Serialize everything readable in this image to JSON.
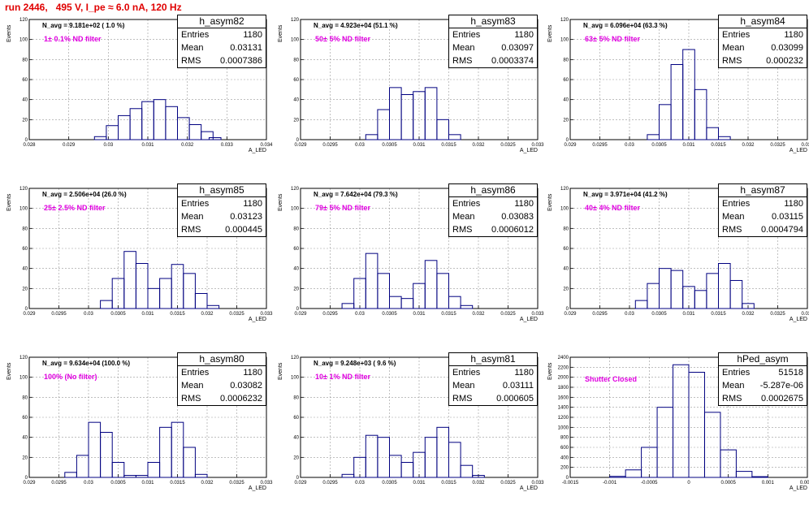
{
  "title": "run 2446,   495 V, I_pe ≈ 6.0 nA, 120 Hz",
  "colors": {
    "title": "#e00000",
    "filter_label": "#e000e0",
    "histogram": "#000080",
    "grid": "#999999"
  },
  "stat_labels": {
    "entries": "Entries",
    "mean": "Mean",
    "rms": "RMS"
  },
  "chart_data": [
    {
      "type": "histogram",
      "name": "h_asym82",
      "navg": "N_avg = 9.181e+02 ( 1.0 %)",
      "filter": "1± 0.1% ND filter",
      "entries": "1180",
      "mean": "0.03131",
      "rms": "0.0007386",
      "xlim": [
        0.028,
        0.034
      ],
      "ylim": [
        0,
        120
      ],
      "xticks": [
        "0.028",
        "0.029",
        "0.03",
        "0.031",
        "0.032",
        "0.033",
        "0.034"
      ],
      "yticks": [
        "0",
        "20",
        "40",
        "60",
        "80",
        "100",
        "120"
      ],
      "xlabel": "A_LED",
      "ylabel": "Events",
      "grid": true,
      "bins": [
        0.0298,
        0.0301,
        0.0304,
        0.0307,
        0.031,
        0.0313,
        0.0316,
        0.0319,
        0.0322,
        0.0325,
        0.0327
      ],
      "counts": [
        3,
        14,
        24,
        31,
        38,
        40,
        33,
        22,
        15,
        8,
        2
      ]
    },
    {
      "type": "histogram",
      "name": "h_asym83",
      "navg": "N_avg = 4.923e+04 (51.1 %)",
      "filter": "50± 5% ND filter",
      "entries": "1180",
      "mean": "0.03097",
      "rms": "0.0003374",
      "xlim": [
        0.029,
        0.033
      ],
      "ylim": [
        0,
        120
      ],
      "xticks": [
        "0.029",
        "0.0295",
        "0.03",
        "0.0305",
        "0.031",
        "0.0315",
        "0.032",
        "0.0325",
        "0.033"
      ],
      "yticks": [
        "0",
        "20",
        "40",
        "60",
        "80",
        "100",
        "120"
      ],
      "xlabel": "A_LED",
      "ylabel": "Events",
      "grid": true,
      "bins": [
        0.0302,
        0.0304,
        0.0306,
        0.0308,
        0.031,
        0.0312,
        0.0314,
        0.0316
      ],
      "counts": [
        5,
        30,
        52,
        45,
        48,
        52,
        20,
        5
      ]
    },
    {
      "type": "histogram",
      "name": "h_asym84",
      "navg": "N_avg = 6.096e+04 (63.3 %)",
      "filter": "63± 5% ND filter",
      "entries": "1180",
      "mean": "0.03099",
      "rms": "0.000232",
      "xlim": [
        0.029,
        0.033
      ],
      "ylim": [
        0,
        120
      ],
      "xticks": [
        "0.029",
        "0.0295",
        "0.03",
        "0.0305",
        "0.031",
        "0.0315",
        "0.032",
        "0.0325",
        "0.033"
      ],
      "yticks": [
        "0",
        "20",
        "40",
        "60",
        "80",
        "100",
        "120"
      ],
      "xlabel": "A_LED",
      "ylabel": "Events",
      "grid": true,
      "bins": [
        0.0304,
        0.0306,
        0.0308,
        0.031,
        0.0312,
        0.0314,
        0.0316
      ],
      "counts": [
        5,
        35,
        75,
        90,
        50,
        12,
        3
      ]
    },
    {
      "type": "histogram",
      "name": "h_asym85",
      "navg": "N_avg = 2.506e+04 (26.0 %)",
      "filter": "25± 2.5% ND filter",
      "entries": "1180",
      "mean": "0.03123",
      "rms": "0.000445",
      "xlim": [
        0.029,
        0.033
      ],
      "ylim": [
        0,
        120
      ],
      "xticks": [
        "0.029",
        "0.0295",
        "0.03",
        "0.0305",
        "0.031",
        "0.0315",
        "0.032",
        "0.0325",
        "0.033"
      ],
      "yticks": [
        "0",
        "20",
        "40",
        "60",
        "80",
        "100",
        "120"
      ],
      "xlabel": "A_LED",
      "ylabel": "Events",
      "grid": true,
      "bins": [
        0.0303,
        0.0305,
        0.0307,
        0.0309,
        0.0311,
        0.0313,
        0.0315,
        0.0317,
        0.0319,
        0.0321
      ],
      "counts": [
        8,
        30,
        57,
        45,
        20,
        30,
        44,
        35,
        15,
        3
      ]
    },
    {
      "type": "histogram",
      "name": "h_asym86",
      "navg": "N_avg = 7.642e+04 (79.3 %)",
      "filter": "79± 5% ND filter",
      "entries": "1180",
      "mean": "0.03083",
      "rms": "0.0006012",
      "xlim": [
        0.029,
        0.033
      ],
      "ylim": [
        0,
        120
      ],
      "xticks": [
        "0.029",
        "0.0295",
        "0.03",
        "0.0305",
        "0.031",
        "0.0315",
        "0.032",
        "0.0325",
        "0.033"
      ],
      "yticks": [
        "0",
        "20",
        "40",
        "60",
        "80",
        "100",
        "120"
      ],
      "xlabel": "A_LED",
      "ylabel": "Events",
      "grid": true,
      "bins": [
        0.0298,
        0.03,
        0.0302,
        0.0304,
        0.0306,
        0.0308,
        0.031,
        0.0312,
        0.0314,
        0.0316,
        0.0318
      ],
      "counts": [
        5,
        30,
        55,
        35,
        12,
        10,
        25,
        48,
        35,
        12,
        3
      ]
    },
    {
      "type": "histogram",
      "name": "h_asym87",
      "navg": "N_avg = 3.971e+04 (41.2 %)",
      "filter": "40± 4% ND filter",
      "entries": "1180",
      "mean": "0.03115",
      "rms": "0.0004794",
      "xlim": [
        0.029,
        0.033
      ],
      "ylim": [
        0,
        120
      ],
      "xticks": [
        "0.029",
        "0.0295",
        "0.03",
        "0.0305",
        "0.031",
        "0.0315",
        "0.032",
        "0.0325",
        "0.033"
      ],
      "yticks": [
        "0",
        "20",
        "40",
        "60",
        "80",
        "100",
        "120"
      ],
      "xlabel": "A_LED",
      "ylabel": "Events",
      "grid": true,
      "bins": [
        0.0302,
        0.0304,
        0.0306,
        0.0308,
        0.031,
        0.0312,
        0.0314,
        0.0316,
        0.0318,
        0.032
      ],
      "counts": [
        8,
        25,
        40,
        38,
        22,
        18,
        35,
        45,
        28,
        5
      ]
    },
    {
      "type": "histogram",
      "name": "h_asym80",
      "navg": "N_avg = 9.634e+04 (100.0 %)",
      "filter": "100% (No filter)",
      "entries": "1180",
      "mean": "0.03082",
      "rms": "0.0006232",
      "xlim": [
        0.029,
        0.033
      ],
      "ylim": [
        0,
        120
      ],
      "xticks": [
        "0.029",
        "0.0295",
        "0.03",
        "0.0305",
        "0.031",
        "0.0315",
        "0.032",
        "0.0325",
        "0.033"
      ],
      "yticks": [
        "0",
        "20",
        "40",
        "60",
        "80",
        "100",
        "120"
      ],
      "xlabel": "A_LED",
      "ylabel": "Events",
      "grid": true,
      "bins": [
        0.0297,
        0.0299,
        0.0301,
        0.0303,
        0.0305,
        0.0307,
        0.0309,
        0.0311,
        0.0313,
        0.0315,
        0.0317,
        0.0319
      ],
      "counts": [
        5,
        22,
        55,
        45,
        15,
        2,
        2,
        15,
        50,
        55,
        30,
        3
      ]
    },
    {
      "type": "histogram",
      "name": "h_asym81",
      "navg": "N_avg = 9.248e+03 ( 9.6 %)",
      "filter": "10± 1% ND filter",
      "entries": "1180",
      "mean": "0.03111",
      "rms": "0.000605",
      "xlim": [
        0.029,
        0.033
      ],
      "ylim": [
        0,
        120
      ],
      "xticks": [
        "0.029",
        "0.0295",
        "0.03",
        "0.0305",
        "0.031",
        "0.0315",
        "0.032",
        "0.0325",
        "0.033"
      ],
      "yticks": [
        "0",
        "20",
        "40",
        "60",
        "80",
        "100",
        "120"
      ],
      "xlabel": "A_LED",
      "ylabel": "Events",
      "grid": true,
      "bins": [
        0.0298,
        0.03,
        0.0302,
        0.0304,
        0.0306,
        0.0308,
        0.031,
        0.0312,
        0.0314,
        0.0316,
        0.0318,
        0.032
      ],
      "counts": [
        3,
        20,
        42,
        40,
        22,
        15,
        25,
        40,
        50,
        35,
        12,
        2
      ]
    },
    {
      "type": "histogram",
      "name": "hPed_asym",
      "navg": "",
      "filter": "Shutter Closed",
      "entries": "51518",
      "mean": "-5.287e-06",
      "rms": "0.0002675",
      "xlim": [
        -0.0015,
        0.0015
      ],
      "ylim": [
        0,
        2400
      ],
      "xticks": [
        "-0.0015",
        "-0.001",
        "-0.0005",
        "0",
        "0.0005",
        "0.001",
        "0.0015"
      ],
      "yticks": [
        "0",
        "200",
        "400",
        "600",
        "800",
        "1000",
        "1200",
        "1400",
        "1600",
        "1800",
        "2000",
        "2200",
        "2400"
      ],
      "xlabel": "A_LED",
      "ylabel": "Events",
      "grid": true,
      "bins": [
        -0.0009,
        -0.0007,
        -0.0005,
        -0.0003,
        -0.0001,
        0.0001,
        0.0003,
        0.0005,
        0.0007,
        0.0009
      ],
      "counts": [
        20,
        150,
        600,
        1400,
        2250,
        2100,
        1300,
        550,
        120,
        15
      ]
    }
  ]
}
